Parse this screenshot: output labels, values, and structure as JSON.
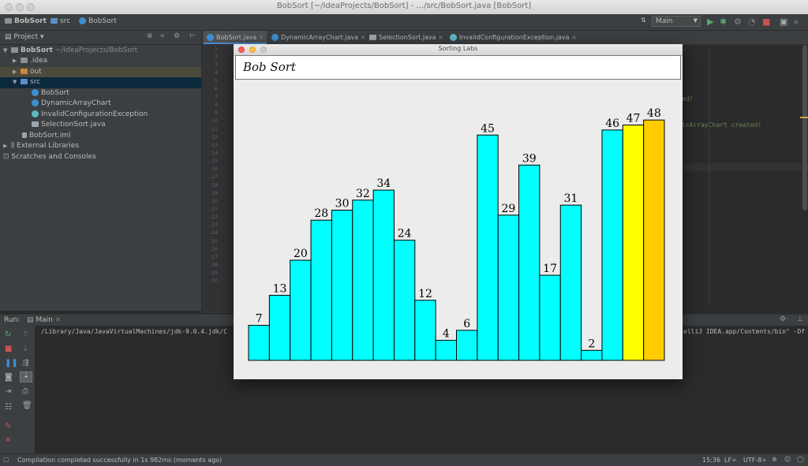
{
  "window": {
    "title": "BobSort [~/IdeaProjects/BobSort] - .../src/BobSort.java [BobSort]"
  },
  "navbar": {
    "breadcrumbs": [
      "BobSort",
      "src",
      "BobSort"
    ],
    "run_config": "Main"
  },
  "project": {
    "header": "Project",
    "root_name": "BobSort",
    "root_path": "~/IdeaProjects/BobSort",
    "items": [
      {
        "label": ".idea"
      },
      {
        "label": "out"
      },
      {
        "label": "src"
      },
      {
        "label": "BobSort"
      },
      {
        "label": "DynamicArrayChart"
      },
      {
        "label": "InvalidConfigurationException"
      },
      {
        "label": "SelectionSort.java"
      },
      {
        "label": "BobSort.iml"
      },
      {
        "label": "External Libraries"
      },
      {
        "label": "Scratches and Consoles"
      }
    ]
  },
  "editor": {
    "tabs": [
      {
        "label": "BobSort.java"
      },
      {
        "label": "DynamicArrayChart.java"
      },
      {
        "label": "SelectionSort.java"
      },
      {
        "label": "InvalidConfigurationException.java"
      }
    ],
    "line_numbers": [
      "1",
      "2",
      "3",
      "4",
      "5",
      "6",
      "7",
      "8",
      "9",
      "10",
      "11",
      "12",
      "13",
      "14",
      "15",
      "16",
      "17",
      "18",
      "19",
      "20",
      "21",
      "22",
      "23",
      "24",
      "25",
      "26",
      "27",
      "28",
      "29",
      "30"
    ],
    "fragment_1": "ed!",
    "fragment_2": "icArrayChart created!"
  },
  "run": {
    "label": "Run:",
    "config": "Main",
    "command": "/Library/Java/JavaVirtualMachines/jdk-9.0.4.jdk/C",
    "command_tail": "elliJ IDEA.app/Contents/bin\" -Df"
  },
  "status": {
    "message": "Compilation completed successfully in 1s 982ms (moments ago)",
    "position": "15:36",
    "line_sep": "LF÷",
    "encoding": "UTF-8÷"
  },
  "labs": {
    "window_title": "Sorting Labs",
    "heading": "Bob Sort"
  },
  "chart_data": {
    "type": "bar",
    "values": [
      7,
      13,
      20,
      28,
      30,
      32,
      34,
      24,
      12,
      4,
      6,
      45,
      29,
      39,
      17,
      31,
      2,
      46,
      47,
      48
    ],
    "colors": [
      "#00ffff",
      "#00ffff",
      "#00ffff",
      "#00ffff",
      "#00ffff",
      "#00ffff",
      "#00ffff",
      "#00ffff",
      "#00ffff",
      "#00ffff",
      "#00ffff",
      "#00ffff",
      "#00ffff",
      "#00ffff",
      "#00ffff",
      "#00ffff",
      "#00ffff",
      "#00ffff",
      "#ffff00",
      "#ffcc00"
    ],
    "ylim": [
      0,
      48
    ],
    "grid": false
  }
}
